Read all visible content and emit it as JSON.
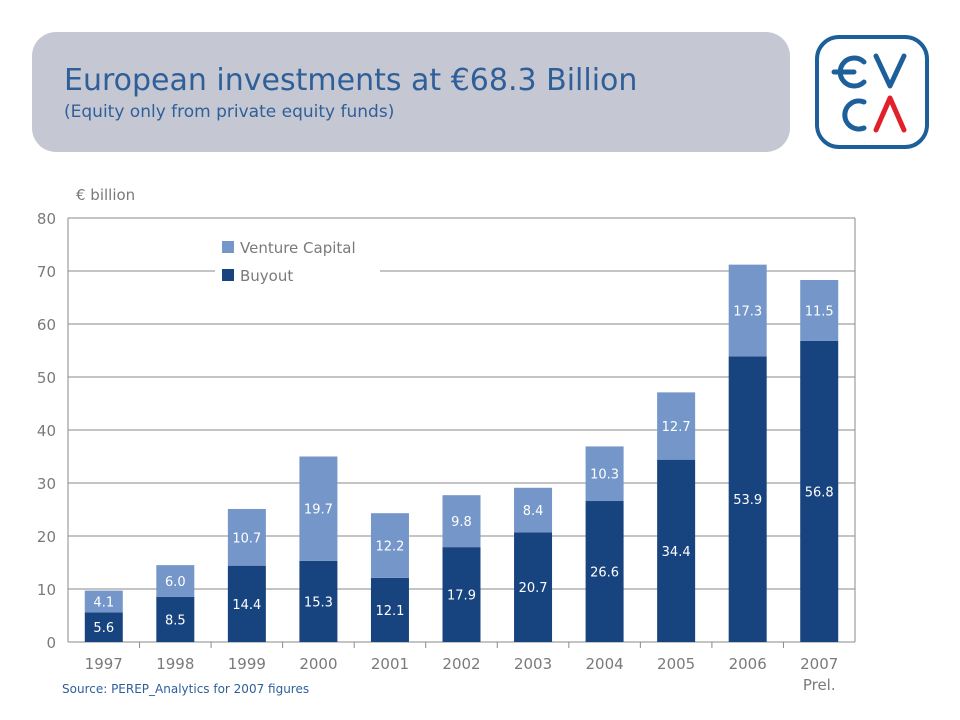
{
  "header": {
    "title": "European investments at €68.3 Billion",
    "subtitle": "(Equity only from private equity funds)"
  },
  "logo": {
    "text": "EVCA"
  },
  "source": "Source: PEREP_Analytics  for 2007 figures",
  "colors": {
    "buyout": "#17437e",
    "venture": "#7496c9",
    "text_blue": "#2f5f99",
    "axis_gray": "#7a7a7a",
    "title_box": "#c5c8d3"
  },
  "chart_data": {
    "type": "bar",
    "stacked": true,
    "ylabel": "€ billion",
    "ylim": [
      0,
      80
    ],
    "yticks": [
      0,
      10,
      20,
      30,
      40,
      50,
      60,
      70,
      80
    ],
    "grid": true,
    "legend_position": "top-left",
    "categories": [
      "1997",
      "1998",
      "1999",
      "2000",
      "2001",
      "2002",
      "2003",
      "2004",
      "2005",
      "2006",
      "2007"
    ],
    "category_sublabels": [
      "",
      "",
      "",
      "",
      "",
      "",
      "",
      "",
      "",
      "",
      "Prel."
    ],
    "series": [
      {
        "name": "Buyout",
        "color": "#17437e",
        "values": [
          5.6,
          8.5,
          14.4,
          15.3,
          12.1,
          17.9,
          20.7,
          26.6,
          34.4,
          53.9,
          56.8
        ]
      },
      {
        "name": "Venture Capital",
        "color": "#7496c9",
        "values": [
          4.1,
          6.0,
          10.7,
          19.7,
          12.2,
          9.8,
          8.4,
          10.3,
          12.7,
          17.3,
          11.5
        ]
      }
    ],
    "legend_order": [
      "Venture Capital",
      "Buyout"
    ]
  }
}
